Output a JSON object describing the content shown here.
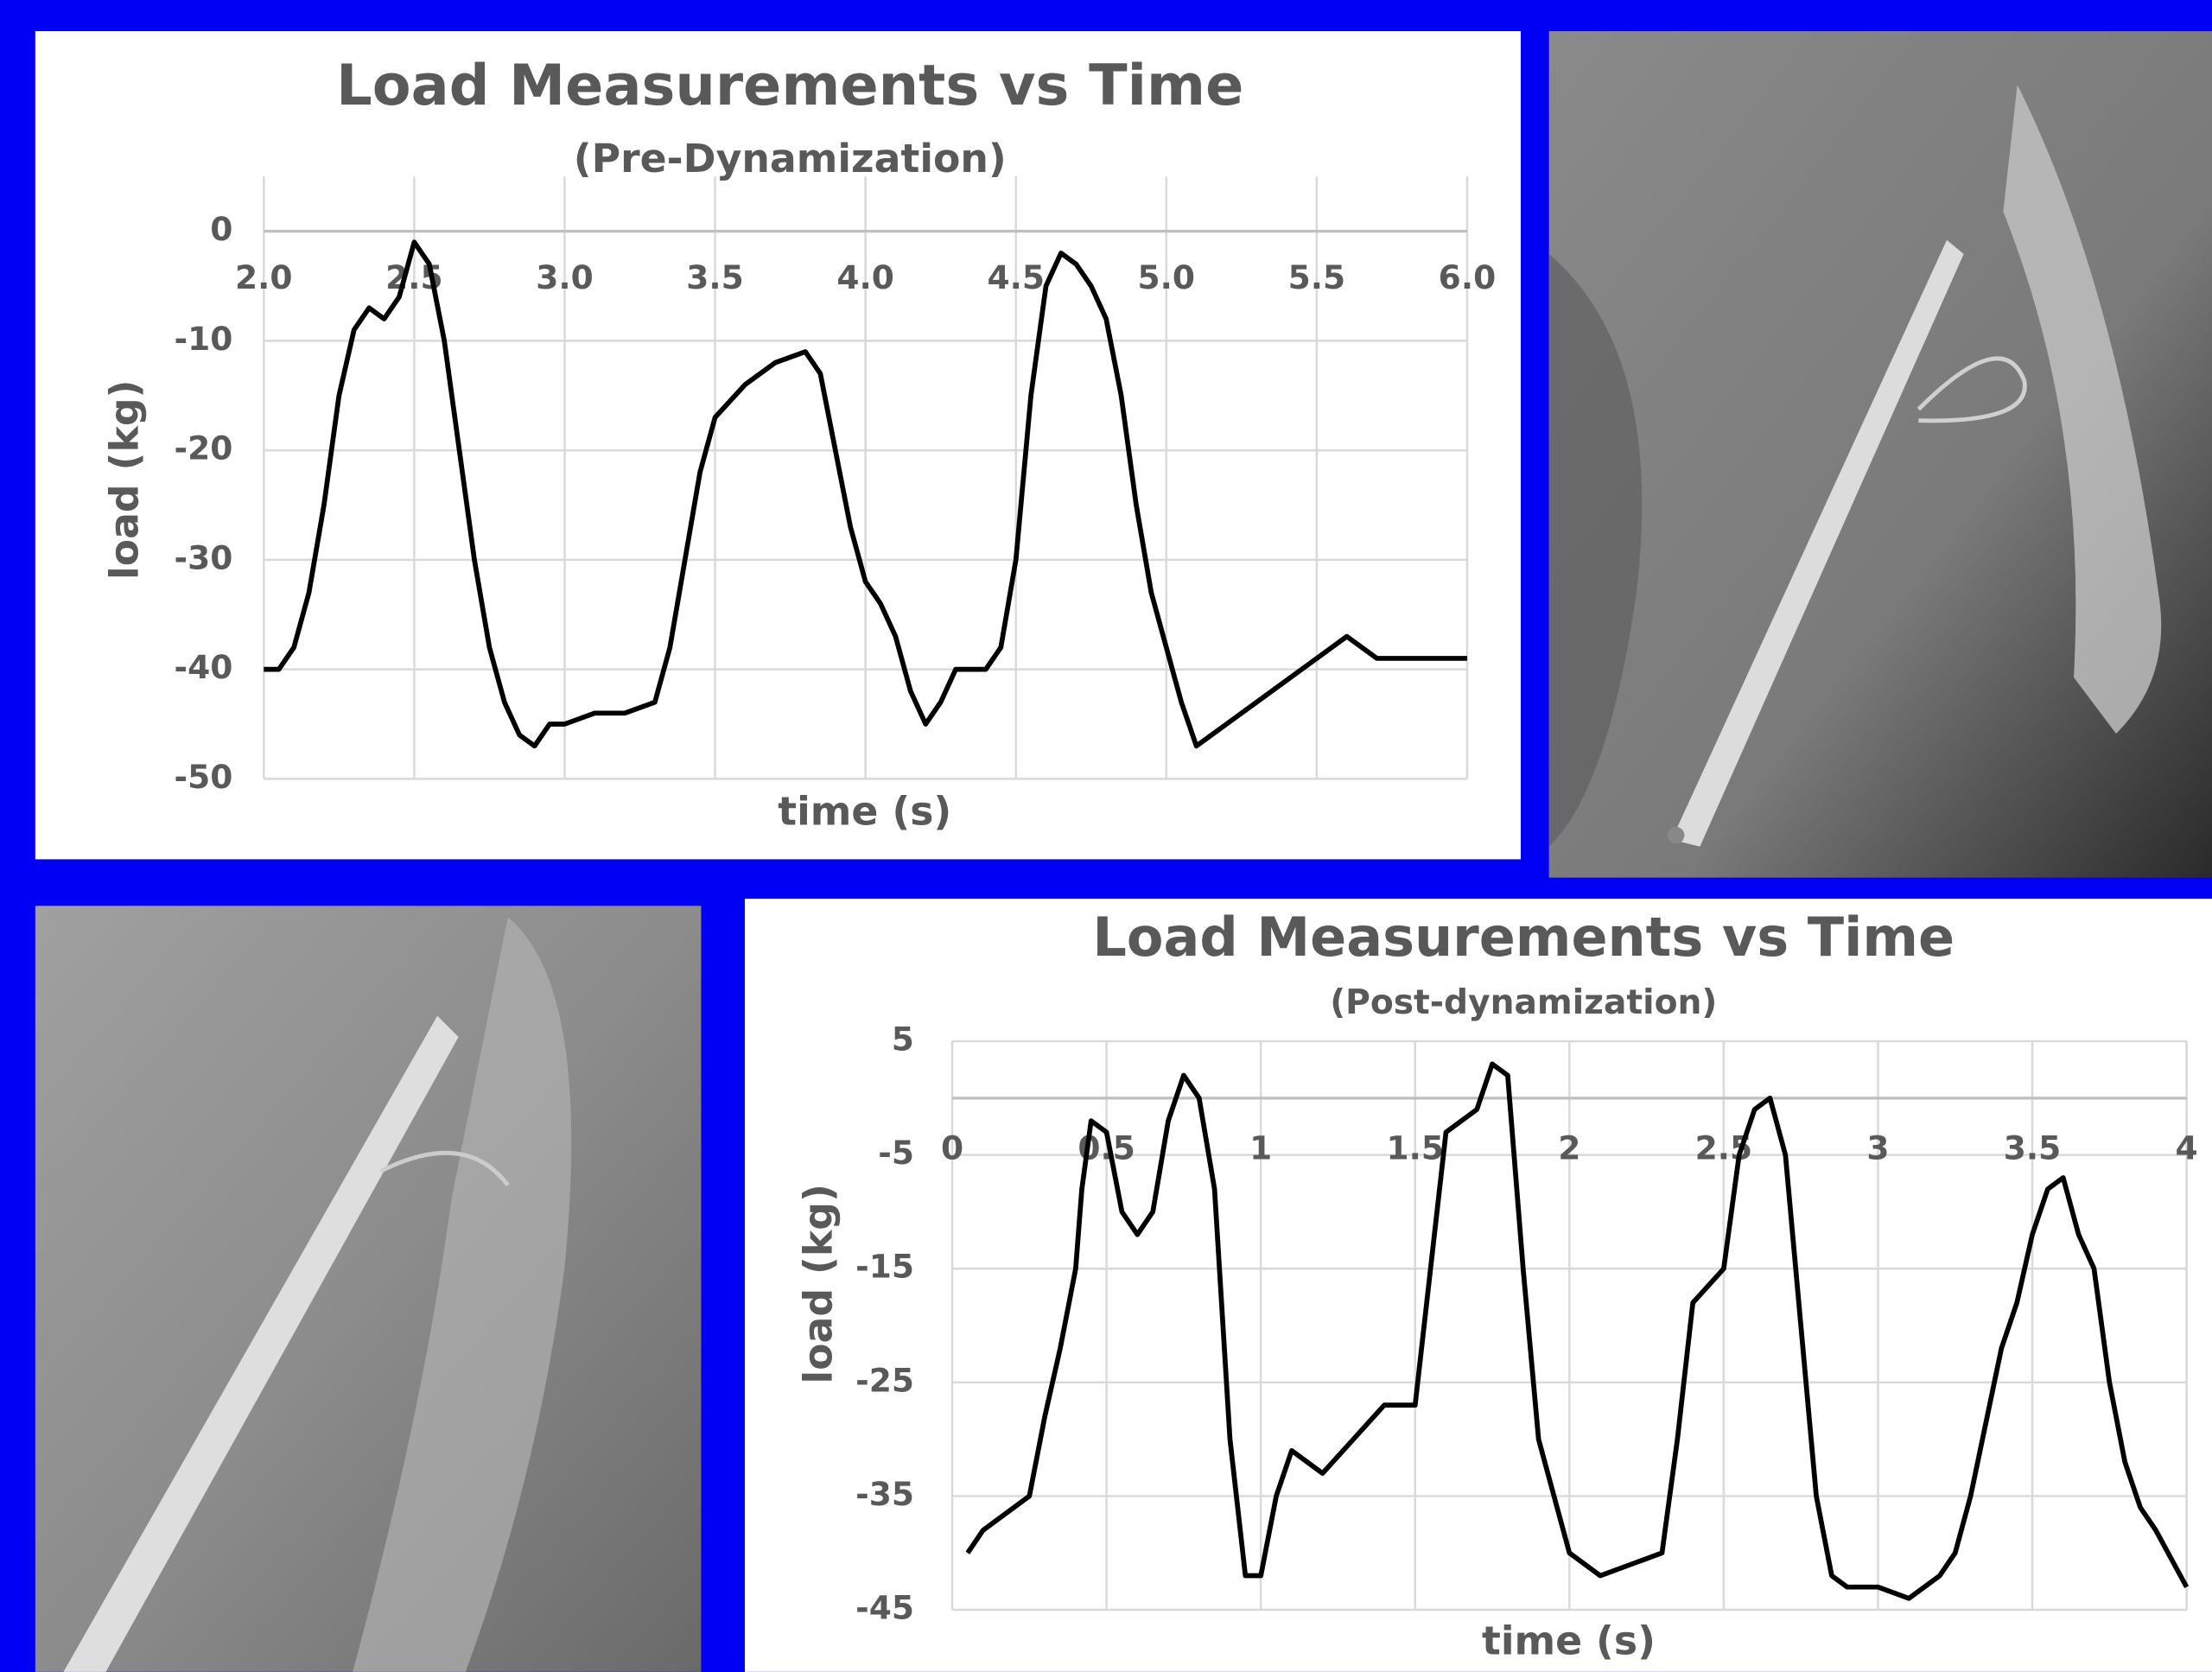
{
  "chart_data": [
    {
      "type": "line",
      "title": "Load Measurements vs Time",
      "subtitle": "(Pre-Dynamization)",
      "xlabel": "time (s)",
      "ylabel": "load (kg)",
      "grid": true,
      "color": "#000000",
      "xlim": [
        2.0,
        6.0
      ],
      "ylim": [
        -50,
        5
      ],
      "xticks": [
        {
          "value": 2.0,
          "label": "2.0"
        },
        2.5,
        {
          "value": 3.0,
          "label": "3.0"
        },
        3.5,
        {
          "value": 4.0,
          "label": "4.0"
        },
        4.5,
        {
          "value": 5.0,
          "label": "5.0"
        },
        5.5,
        {
          "value": 6.0,
          "label": "6.0"
        }
      ],
      "yticks": [
        0,
        -10,
        -20,
        -30,
        -40,
        -50
      ],
      "x": [
        2.0,
        2.05,
        2.1,
        2.15,
        2.2,
        2.25,
        2.3,
        2.35,
        2.4,
        2.45,
        2.5,
        2.55,
        2.6,
        2.65,
        2.7,
        2.75,
        2.8,
        2.85,
        2.9,
        2.95,
        3.0,
        3.1,
        3.2,
        3.3,
        3.35,
        3.4,
        3.45,
        3.5,
        3.6,
        3.7,
        3.8,
        3.85,
        3.9,
        3.95,
        4.0,
        4.05,
        4.1,
        4.15,
        4.2,
        4.25,
        4.3,
        4.4,
        4.45,
        4.5,
        4.55,
        4.6,
        4.65,
        4.7,
        4.75,
        4.8,
        4.85,
        4.9,
        4.95,
        5.0,
        5.05,
        5.1,
        5.15,
        5.2,
        5.3,
        5.4,
        5.5,
        5.6,
        5.7,
        5.8,
        5.9,
        6.0
      ],
      "values": [
        -40,
        -40,
        -38,
        -33,
        -25,
        -15,
        -9,
        -7,
        -8,
        -6,
        -1,
        -3,
        -10,
        -20,
        -30,
        -38,
        -43,
        -46,
        -47,
        -45,
        -45,
        -44,
        -44,
        -43,
        -38,
        -30,
        -22,
        -17,
        -14,
        -12,
        -11,
        -13,
        -20,
        -27,
        -32,
        -34,
        -37,
        -42,
        -45,
        -43,
        -40,
        -40,
        -38,
        -30,
        -15,
        -5,
        -2,
        -3,
        -5,
        -8,
        -15,
        -25,
        -33,
        -38,
        -43,
        -47,
        -46,
        -45,
        -43,
        -41,
        -39,
        -37,
        -39,
        -39,
        -39,
        -39
      ]
    },
    {
      "type": "line",
      "title": "Load Measurements vs Time",
      "subtitle": "(Post-dynamization)",
      "xlabel": "time (s)",
      "ylabel": "load (kg)",
      "grid": true,
      "color": "#000000",
      "xlim": [
        0,
        4
      ],
      "ylim": [
        -45,
        5
      ],
      "xticks": [
        0,
        0.5,
        1,
        1.5,
        2,
        2.5,
        3,
        3.5,
        4
      ],
      "yticks": [
        5,
        -5,
        -15,
        -25,
        -35,
        -45
      ],
      "x": [
        0.05,
        0.1,
        0.2,
        0.25,
        0.3,
        0.35,
        0.4,
        0.42,
        0.45,
        0.5,
        0.55,
        0.6,
        0.65,
        0.7,
        0.75,
        0.8,
        0.85,
        0.9,
        0.95,
        1.0,
        1.05,
        1.1,
        1.2,
        1.3,
        1.4,
        1.5,
        1.55,
        1.6,
        1.7,
        1.75,
        1.8,
        1.85,
        1.9,
        1.95,
        2.0,
        2.1,
        2.2,
        2.3,
        2.35,
        2.4,
        2.5,
        2.55,
        2.6,
        2.65,
        2.7,
        2.75,
        2.8,
        2.85,
        2.9,
        3.0,
        3.1,
        3.2,
        3.25,
        3.3,
        3.4,
        3.45,
        3.5,
        3.55,
        3.6,
        3.65,
        3.7,
        3.75,
        3.8,
        3.85,
        3.9,
        4.0
      ],
      "values": [
        -40,
        -38,
        -36,
        -35,
        -28,
        -22,
        -15,
        -8,
        -2,
        -3,
        -10,
        -12,
        -10,
        -2,
        2,
        0,
        -8,
        -30,
        -42,
        -42,
        -35,
        -31,
        -33,
        -30,
        -27,
        -27,
        -15,
        -3,
        -1,
        3,
        2,
        -15,
        -30,
        -35,
        -40,
        -42,
        -41,
        -40,
        -30,
        -18,
        -15,
        -5,
        -1,
        0,
        -5,
        -20,
        -35,
        -42,
        -43,
        -43,
        -44,
        -42,
        -40,
        -35,
        -22,
        -18,
        -12,
        -8,
        -7,
        -12,
        -15,
        -25,
        -32,
        -36,
        -38,
        -43
      ]
    }
  ]
}
